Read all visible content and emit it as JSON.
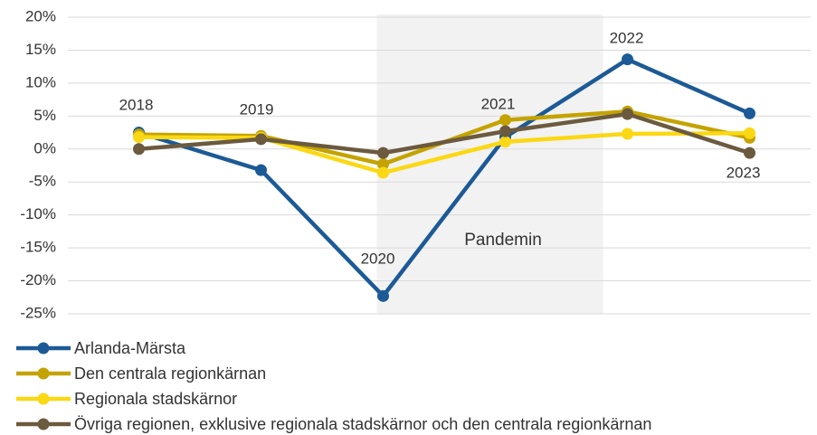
{
  "chart_data": {
    "type": "line",
    "categories": [
      "2018",
      "2019",
      "2020",
      "2021",
      "2022",
      "2023"
    ],
    "annotations": [
      "Pandemin"
    ],
    "series": [
      {
        "name": "Arlanda-Märsta",
        "color": "#1c5a96",
        "values": [
          2.5,
          -3.2,
          -22.3,
          1.8,
          13.6,
          5.4
        ]
      },
      {
        "name": "Den centrala regionkärnan",
        "color": "#c4a300",
        "values": [
          2.2,
          2.0,
          -2.3,
          4.4,
          5.7,
          1.7
        ]
      },
      {
        "name": "Regionala stadskärnor",
        "color": "#fad814",
        "values": [
          1.8,
          1.7,
          -3.6,
          1.1,
          2.3,
          2.4
        ]
      },
      {
        "name": "Övriga regionen, exklusive regionala stadskärnor och den centrala regionkärnan",
        "color": "#6b5a3e",
        "values": [
          0.0,
          1.5,
          -0.6,
          2.7,
          5.3,
          -0.6
        ]
      }
    ],
    "ylim": [
      -25,
      20
    ],
    "yticks": [
      {
        "value": -25,
        "label": "-25%"
      },
      {
        "value": -20,
        "label": "-20%"
      },
      {
        "value": -15,
        "label": "-15%"
      },
      {
        "value": -10,
        "label": "-10%"
      },
      {
        "value": -5,
        "label": "-5%"
      },
      {
        "value": 0,
        "label": "0%"
      },
      {
        "value": 5,
        "label": "5%"
      },
      {
        "value": 10,
        "label": "10%"
      },
      {
        "value": 15,
        "label": "15%"
      },
      {
        "value": 20,
        "label": "20%"
      }
    ],
    "grid": true
  }
}
